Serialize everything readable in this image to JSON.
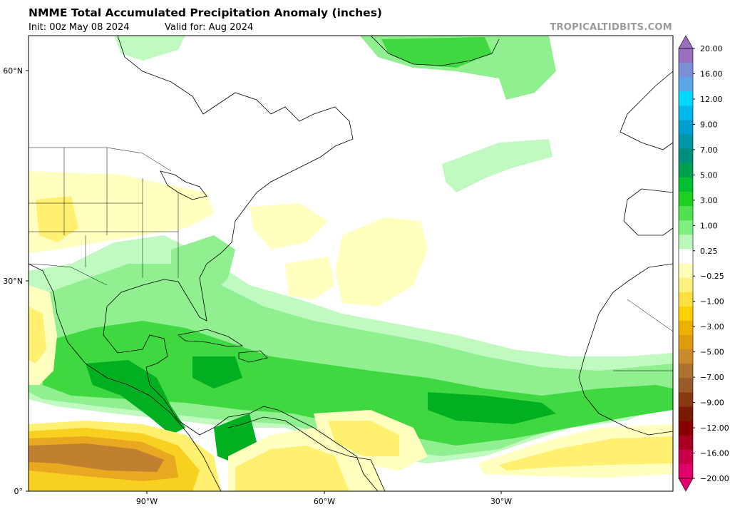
{
  "header": {
    "title": "NMME Total Accumulated Precipitation Anomaly (inches)",
    "init": "Init: 00z May 08 2024",
    "valid": "Valid for: Aug 2024",
    "brand": "TROPICALTIDBITS.COM"
  },
  "axes": {
    "lat_labels": [
      "60°N",
      "30°N",
      "0°"
    ],
    "lon_labels": [
      "90°W",
      "60°W",
      "30°W"
    ]
  },
  "colorbar": {
    "labels": [
      "20.00",
      "16.00",
      "12.00",
      "9.00",
      "7.00",
      "5.00",
      "3.00",
      "1.00",
      "0.25",
      "−0.25",
      "−1.00",
      "−3.00",
      "−5.00",
      "−7.00",
      "−9.00",
      "−12.00",
      "−16.00",
      "−20.00"
    ],
    "colors": [
      "#9b6fbf",
      "#7c8fd6",
      "#5aa6e8",
      "#00d8ff",
      "#00b8ec",
      "#009fd0",
      "#0096a8",
      "#008f7a",
      "#00a050",
      "#00c030",
      "#20d020",
      "#50e050",
      "#80f080",
      "#b8f8b8",
      "#ffffff",
      "#ffffb8",
      "#fff080",
      "#ffe040",
      "#ffd000",
      "#f0b000",
      "#e09a10",
      "#c88a2c",
      "#b07030",
      "#9a5a2a",
      "#8a3a10",
      "#7a1a00",
      "#8a0000",
      "#a80020",
      "#c8004a",
      "#e0006a"
    ]
  },
  "legend_colors": {
    "wet_strong": "#00b020",
    "wet": "#40d840",
    "wet_light": "#90f090",
    "wet_faint": "#c0fac0",
    "dry_faint": "#ffffc0",
    "dry_light": "#fff070",
    "dry": "#f8d020",
    "dry_strong": "#e8a820",
    "dry_brown": "#c08030"
  }
}
